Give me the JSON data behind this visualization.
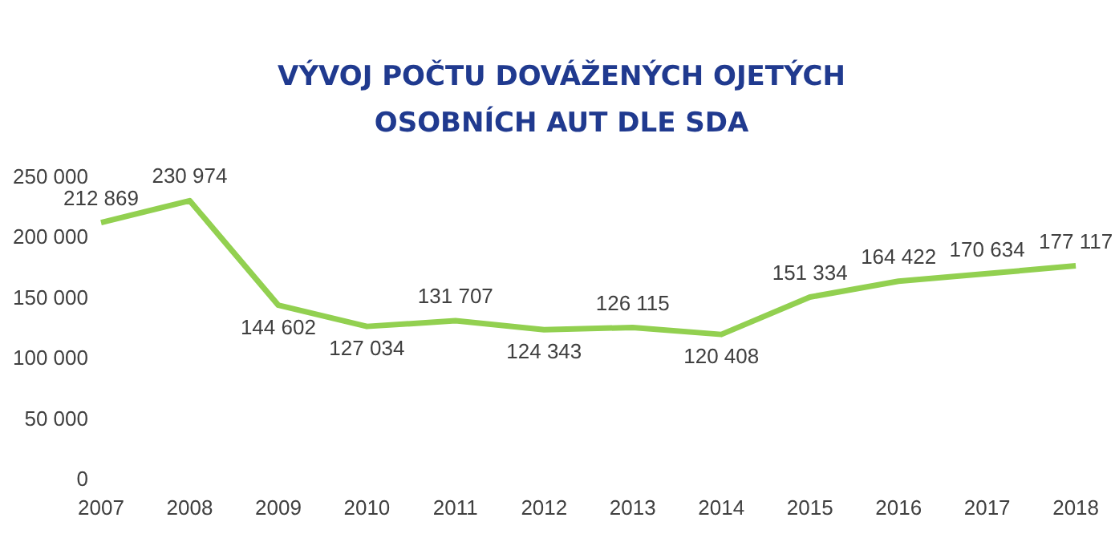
{
  "chart_data": {
    "type": "line",
    "title": "VÝVOJ POČTU DOVÁŽENÝCH OJETÝCH OSOBNÍCH AUT DLE SDA",
    "categories": [
      "2007",
      "2008",
      "2009",
      "2010",
      "2011",
      "2012",
      "2013",
      "2014",
      "2015",
      "2016",
      "2017",
      "2018"
    ],
    "series": [
      {
        "color": "#92d050",
        "values": [
          212869,
          230974,
          144602,
          127034,
          131707,
          124343,
          126115,
          120408,
          151334,
          164422,
          170634,
          177117
        ]
      }
    ],
    "ylim": [
      0,
      250000
    ],
    "yticks": [
      {
        "value": 0,
        "label": "0"
      },
      {
        "value": 50000,
        "label": "50 000"
      },
      {
        "value": 100000,
        "label": "100 000"
      },
      {
        "value": 150000,
        "label": "150 000"
      },
      {
        "value": 200000,
        "label": "200 000"
      },
      {
        "value": 250000,
        "label": "250 000"
      }
    ],
    "grid": false,
    "legend": false,
    "marker": "none",
    "line_style": "solid",
    "data_labels": true
  }
}
